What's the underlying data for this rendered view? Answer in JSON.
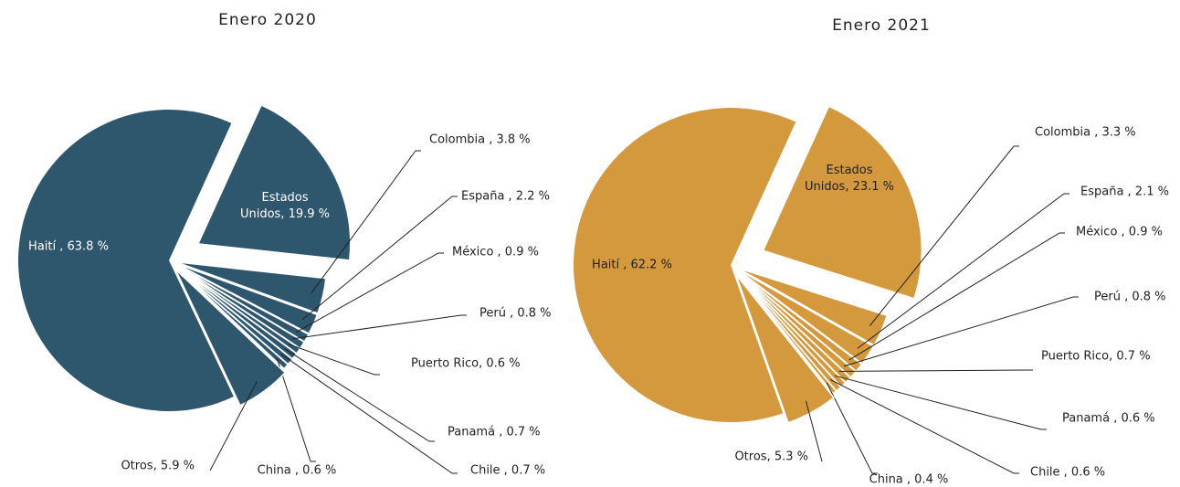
{
  "chart_data": [
    {
      "type": "pie",
      "title": "Enero 2020",
      "color": "#2e576e",
      "labels": [
        "Haití , 63.8 %",
        "Estados Unidos, 19.9 %",
        "Colombia , 3.8 %",
        "España , 2.2 %",
        "México , 0.9 %",
        "Perú , 0.8 %",
        "Puerto Rico, 0.6 %",
        "Panamá , 0.7 %",
        "Chile , 0.7 %",
        "China , 0.6 %",
        "Otros, 5.9 %"
      ],
      "values": [
        63.8,
        19.9,
        3.8,
        2.2,
        0.9,
        0.8,
        0.6,
        0.7,
        0.7,
        0.6,
        5.9
      ]
    },
    {
      "type": "pie",
      "title": "Enero 2021",
      "color": "#d4983d",
      "labels": [
        "Haití , 62.2 %",
        "Estados Unidos, 23.1 %",
        "Colombia , 3.3 %",
        "España , 2.1 %",
        "México , 0.9 %",
        "Perú , 0.8 %",
        "Puerto Rico, 0.7 %",
        "Panamá , 0.6 %",
        "Chile , 0.6 %",
        "China , 0.4 %",
        "Otros, 5.3 %"
      ],
      "values": [
        62.2,
        23.1,
        3.3,
        2.1,
        0.9,
        0.8,
        0.7,
        0.6,
        0.6,
        0.4,
        5.3
      ]
    }
  ]
}
